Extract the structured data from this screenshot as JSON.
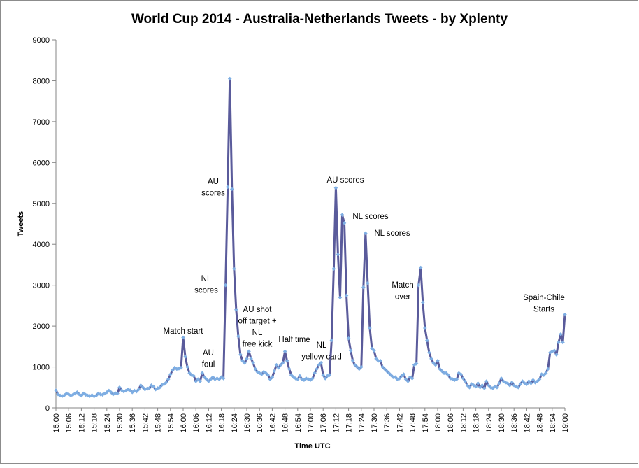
{
  "chart_data": {
    "type": "line",
    "title": "World Cup 2014 - Australia-Netherlands Tweets - by Xplenty",
    "x_label": "Time UTC",
    "y_label": "Tweets",
    "ylim": [
      0,
      9000
    ],
    "yticks": [
      0,
      1000,
      2000,
      3000,
      4000,
      5000,
      6000,
      7000,
      8000,
      9000
    ],
    "grid": false,
    "categories": [
      "15:00",
      null,
      null,
      null,
      null,
      null,
      "15:06",
      null,
      null,
      null,
      null,
      null,
      "15:12",
      null,
      null,
      null,
      null,
      null,
      "15:18",
      null,
      null,
      null,
      null,
      null,
      "15:24",
      null,
      null,
      null,
      null,
      null,
      "15:30",
      null,
      null,
      null,
      null,
      null,
      "15:36",
      null,
      null,
      null,
      null,
      null,
      "15:42",
      null,
      null,
      null,
      null,
      null,
      "15:48",
      null,
      null,
      null,
      null,
      null,
      "15:54",
      null,
      null,
      null,
      null,
      null,
      "16:00",
      null,
      null,
      null,
      null,
      null,
      "16:06",
      null,
      null,
      null,
      null,
      null,
      "16:12",
      null,
      null,
      null,
      null,
      null,
      "16:18",
      null,
      null,
      null,
      null,
      null,
      "16:24",
      null,
      null,
      null,
      null,
      null,
      "16:30",
      null,
      null,
      null,
      null,
      null,
      "16:36",
      null,
      null,
      null,
      null,
      null,
      "16:42",
      null,
      null,
      null,
      null,
      null,
      "16:48",
      null,
      null,
      null,
      null,
      null,
      "16:54",
      null,
      null,
      null,
      null,
      null,
      "17:00",
      null,
      null,
      null,
      null,
      null,
      "17:06",
      null,
      null,
      null,
      null,
      null,
      "17:12",
      null,
      null,
      null,
      null,
      null,
      "17:18",
      null,
      null,
      null,
      null,
      null,
      "17:24",
      null,
      null,
      null,
      null,
      null,
      "17:30",
      null,
      null,
      null,
      null,
      null,
      "17:36",
      null,
      null,
      null,
      null,
      null,
      "17:42",
      null,
      null,
      null,
      null,
      null,
      "17:48",
      null,
      null,
      null,
      null,
      null,
      "17:54",
      null,
      null,
      null,
      null,
      null,
      "18:00",
      null,
      null,
      null,
      null,
      null,
      "18:06",
      null,
      null,
      null,
      null,
      null,
      "18:12",
      null,
      null,
      null,
      null,
      null,
      "18:18",
      null,
      null,
      null,
      null,
      null,
      "18:24",
      null,
      null,
      null,
      null,
      null,
      "18:30",
      null,
      null,
      null,
      null,
      null,
      "18:36",
      null,
      null,
      null,
      null,
      null,
      "18:42",
      null,
      null,
      null,
      null,
      null,
      "18:48",
      null,
      null,
      null,
      null,
      null,
      "18:54",
      null,
      null,
      null,
      null,
      null,
      "19:00"
    ],
    "series": [
      {
        "name": "Tweets",
        "color": "#5a5b9b",
        "marker_color": "#7eaee3",
        "values": [
          430,
          330,
          300,
          290,
          310,
          350,
          330,
          300,
          320,
          350,
          380,
          330,
          300,
          350,
          320,
          300,
          290,
          310,
          280,
          300,
          350,
          330,
          320,
          350,
          380,
          420,
          380,
          330,
          360,
          350,
          500,
          430,
          400,
          420,
          450,
          430,
          380,
          420,
          400,
          450,
          550,
          500,
          450,
          470,
          480,
          550,
          520,
          450,
          480,
          500,
          560,
          580,
          620,
          700,
          820,
          920,
          980,
          950,
          960,
          980,
          1720,
          1250,
          1000,
          850,
          800,
          780,
          650,
          700,
          650,
          850,
          750,
          700,
          650,
          700,
          750,
          700,
          720,
          700,
          750,
          720,
          3000,
          5400,
          8050,
          5350,
          3400,
          2400,
          1750,
          1300,
          1150,
          1100,
          1200,
          1380,
          1200,
          1100,
          950,
          880,
          850,
          820,
          880,
          850,
          800,
          700,
          750,
          900,
          1050,
          980,
          1050,
          1100,
          1380,
          1150,
          950,
          800,
          750,
          720,
          700,
          780,
          700,
          680,
          720,
          700,
          680,
          720,
          850,
          950,
          1050,
          1100,
          800,
          720,
          780,
          800,
          1650,
          3400,
          5380,
          3750,
          2700,
          4720,
          4520,
          2750,
          1700,
          1400,
          1150,
          1050,
          1000,
          950,
          1000,
          2950,
          4270,
          3050,
          1950,
          1450,
          1400,
          1200,
          1150,
          1150,
          1000,
          950,
          900,
          850,
          800,
          750,
          750,
          700,
          720,
          780,
          820,
          700,
          650,
          750,
          720,
          1050,
          1080,
          3000,
          3430,
          2580,
          1950,
          1650,
          1350,
          1200,
          1100,
          1050,
          1150,
          950,
          900,
          850,
          850,
          800,
          720,
          700,
          680,
          700,
          850,
          820,
          720,
          650,
          550,
          500,
          580,
          550,
          520,
          600,
          500,
          550,
          480,
          650,
          550,
          500,
          480,
          520,
          500,
          600,
          720,
          650,
          620,
          600,
          550,
          620,
          550,
          520,
          500,
          580,
          650,
          600,
          580,
          650,
          600,
          680,
          620,
          650,
          700,
          820,
          800,
          850,
          950,
          1350,
          1380,
          1400,
          1300,
          1600,
          1800,
          1600,
          2280
        ]
      }
    ],
    "annotations": [
      [
        "Match start"
      ],
      [
        "AU",
        "foul"
      ],
      [
        "AU",
        "scores"
      ],
      [
        "NL",
        "scores"
      ],
      [
        "AU shot",
        "off target +",
        "NL",
        "free kick"
      ],
      [
        "Half time"
      ],
      [
        "NL",
        "yellow card"
      ],
      [
        "AU scores"
      ],
      [
        "NL scores"
      ],
      [
        "NL scores"
      ],
      [
        "Match",
        "over"
      ],
      [
        "Spain-Chile",
        "Starts"
      ]
    ]
  }
}
